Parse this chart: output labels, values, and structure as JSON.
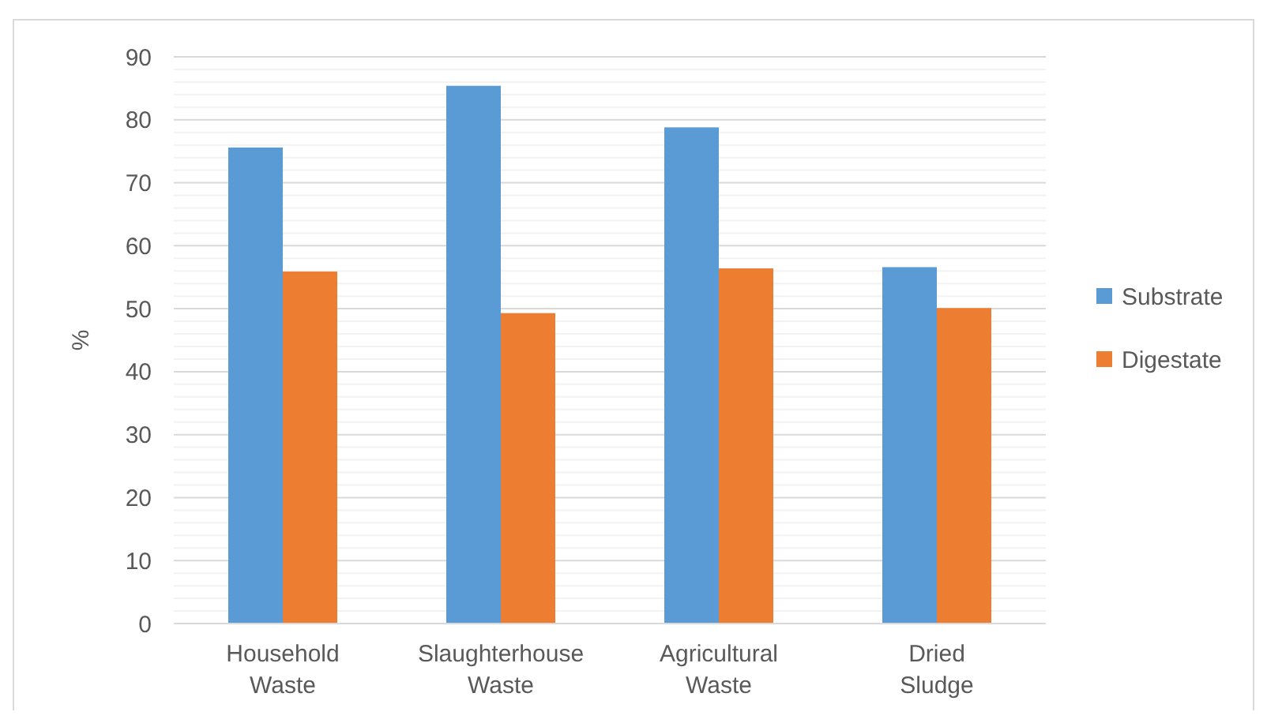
{
  "chart_data": {
    "type": "bar",
    "ylabel": "%",
    "categories": [
      "Household Waste",
      "Slaughterhouse Waste",
      "Agricultural Waste",
      "Dried Sludge"
    ],
    "series": [
      {
        "name": "Substrate",
        "color": "#5b9bd5",
        "values": [
          75.6,
          85.4,
          78.8,
          56.6
        ]
      },
      {
        "name": "Digestate",
        "color": "#ed7d31",
        "values": [
          55.9,
          49.3,
          56.4,
          50.1
        ]
      }
    ],
    "ylim": [
      0,
      90
    ],
    "yticks": [
      0,
      {
        "value": 2,
        "label": null
      },
      {
        "value": 4,
        "label": null
      },
      {
        "value": 6,
        "label": null
      },
      {
        "value": 8,
        "label": null
      },
      10,
      {
        "value": 12,
        "label": null
      },
      {
        "value": 14,
        "label": null
      },
      {
        "value": 16,
        "label": null
      },
      {
        "value": 18,
        "label": null
      },
      20,
      {
        "value": 22,
        "label": null
      },
      {
        "value": 24,
        "label": null
      },
      {
        "value": 26,
        "label": null
      },
      {
        "value": 28,
        "label": null
      },
      30,
      {
        "value": 32,
        "label": null
      },
      {
        "value": 34,
        "label": null
      },
      {
        "value": 36,
        "label": null
      },
      {
        "value": 38,
        "label": null
      },
      40,
      {
        "value": 42,
        "label": null
      },
      {
        "value": 44,
        "label": null
      },
      {
        "value": 46,
        "label": null
      },
      {
        "value": 48,
        "label": null
      },
      50,
      {
        "value": 52,
        "label": null
      },
      {
        "value": 54,
        "label": null
      },
      {
        "value": 56,
        "label": null
      },
      {
        "value": 58,
        "label": null
      },
      60,
      {
        "value": 62,
        "label": null
      },
      {
        "value": 64,
        "label": null
      },
      {
        "value": 66,
        "label": null
      },
      {
        "value": 68,
        "label": null
      },
      70,
      {
        "value": 72,
        "label": null
      },
      {
        "value": 74,
        "label": null
      },
      {
        "value": 76,
        "label": null
      },
      {
        "value": 78,
        "label": null
      },
      80,
      {
        "value": 82,
        "label": null
      },
      {
        "value": 84,
        "label": null
      },
      {
        "value": 86,
        "label": null
      },
      {
        "value": 88,
        "label": null
      },
      90
    ],
    "grid": true,
    "legend": "right"
  }
}
